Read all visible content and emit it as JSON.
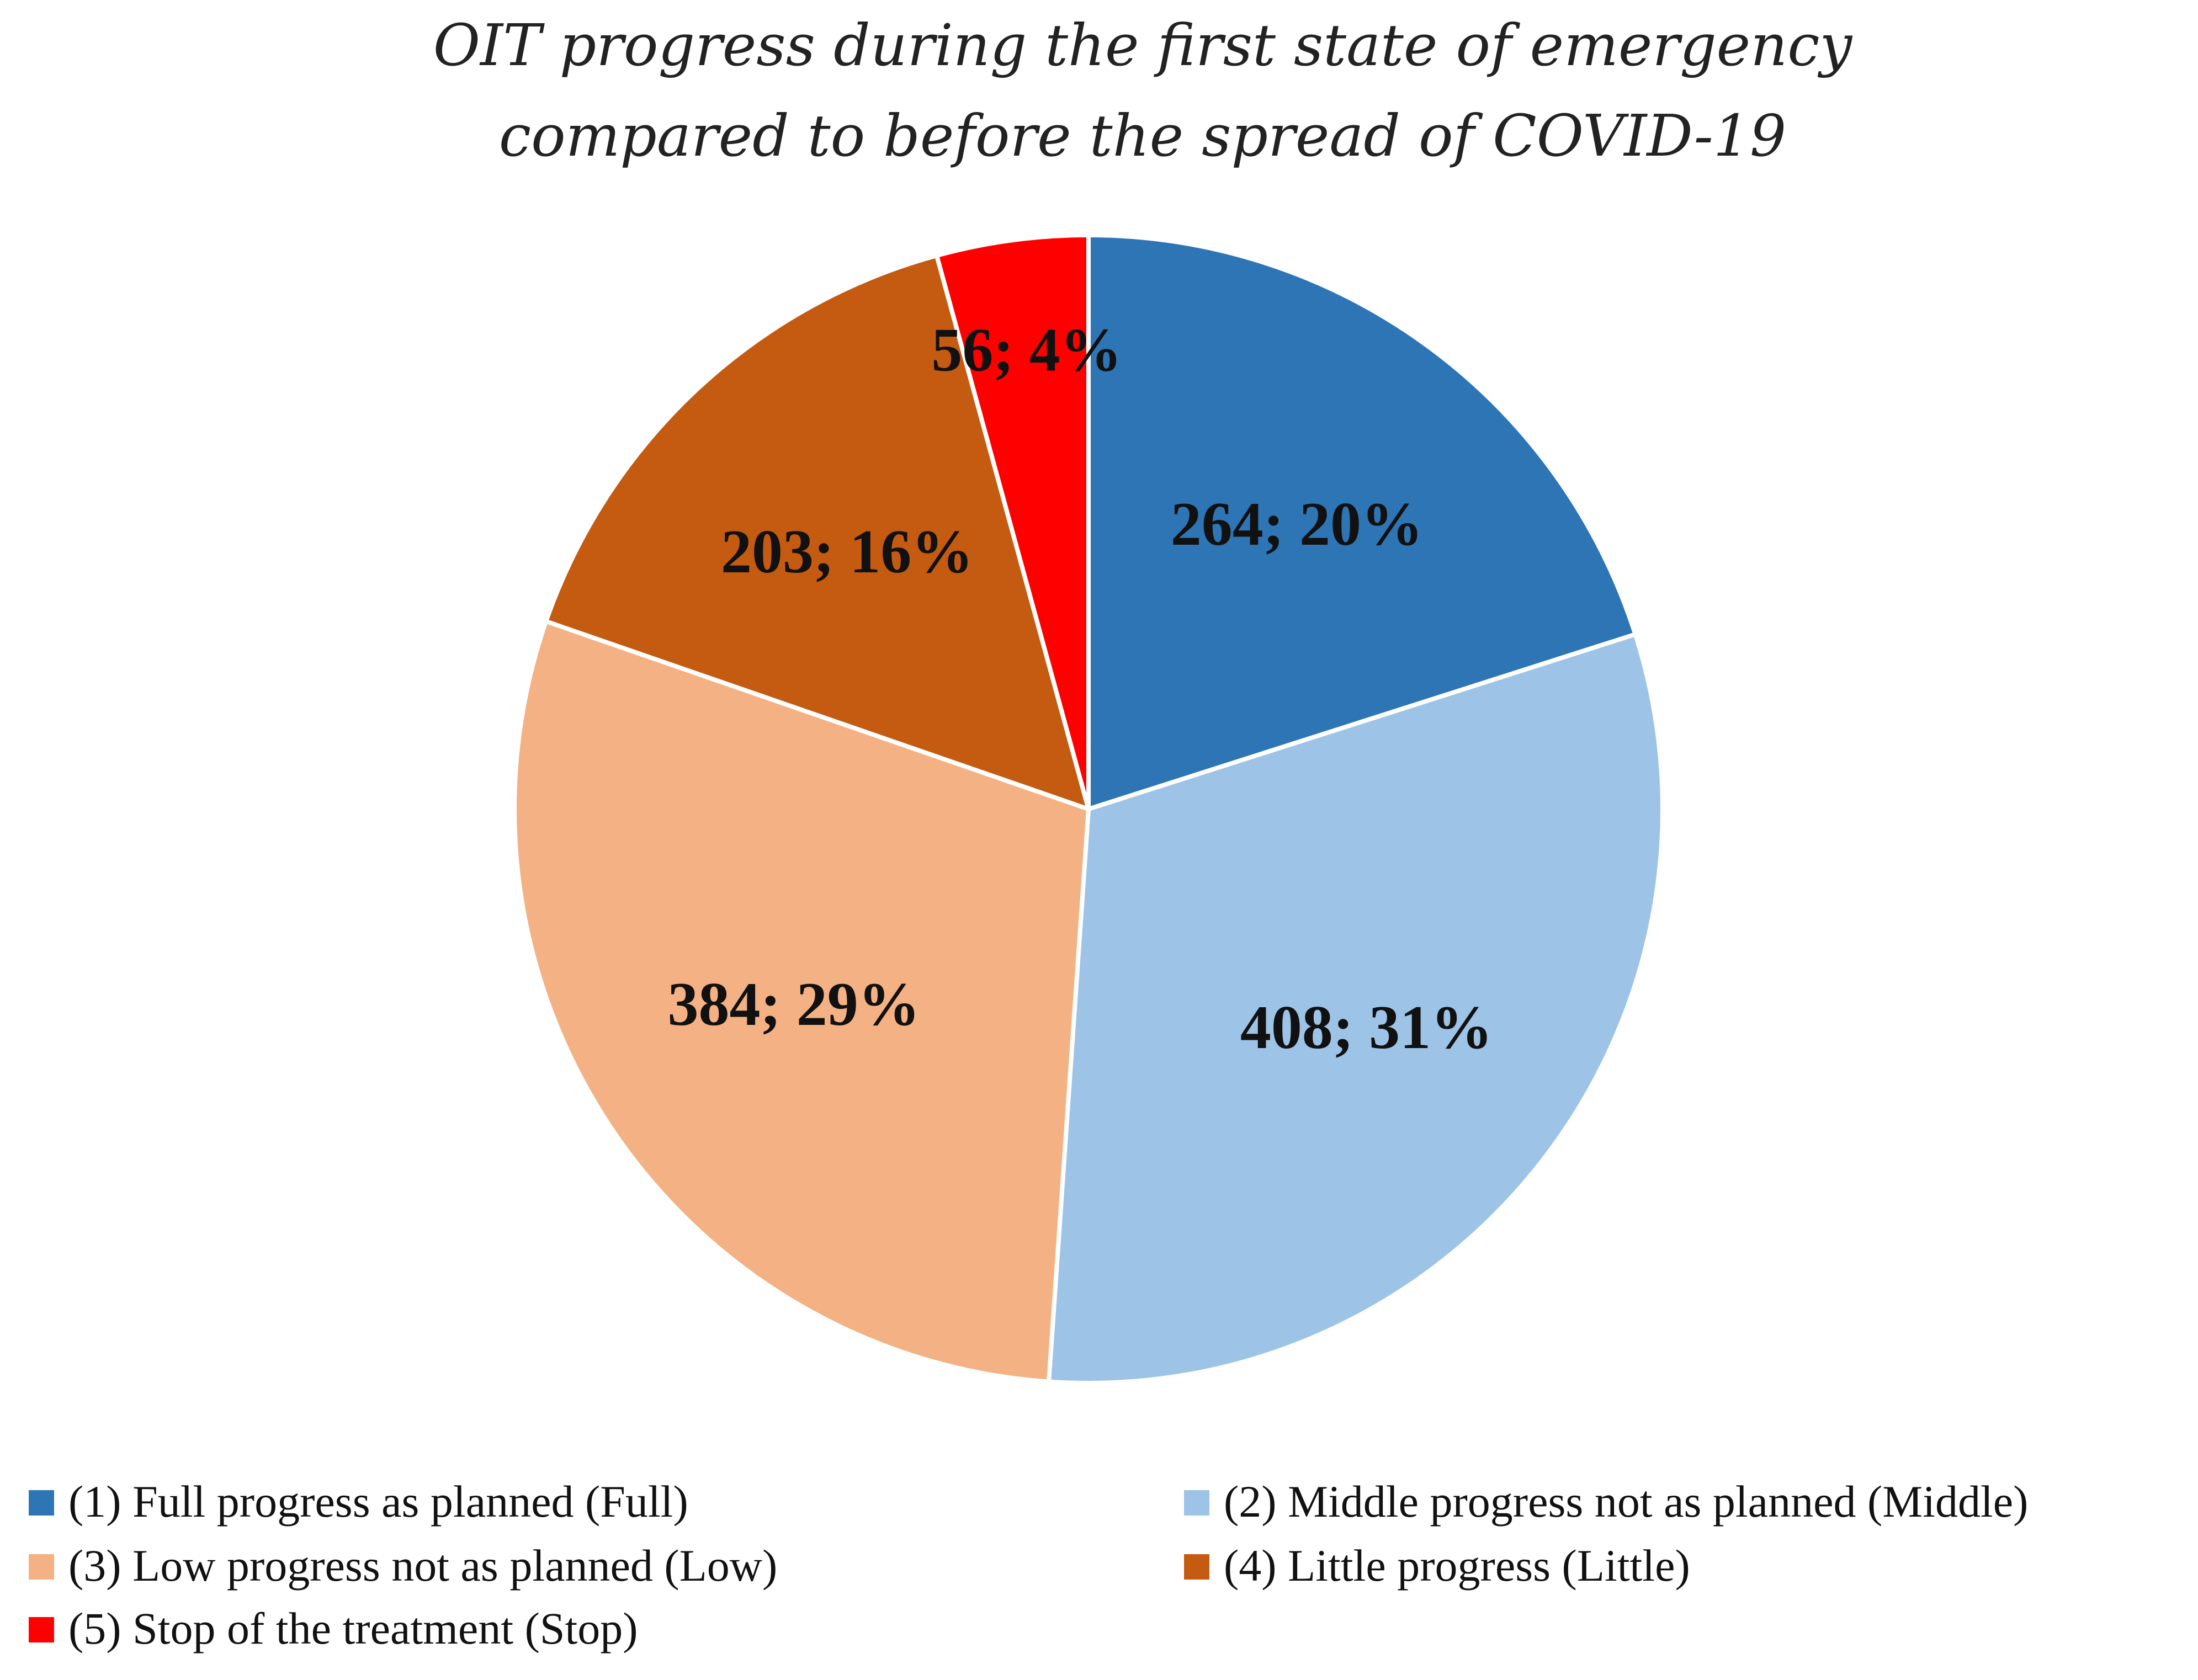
{
  "chart_data": {
    "type": "pie",
    "title": "OIT progress during the first state of emergency compared to before the spread of COVID-19",
    "title_lines": [
      "OIT progress during the first state of emergency",
      "compared to before the spread of COVID-19"
    ],
    "categories": [
      "(1) Full progress as planned (Full)",
      "(2) Middle progress not as planned (Middle)",
      "(3) Low progress not as planned (Low)",
      "(4) Little progress (Little)",
      "(5) Stop of the treatment (Stop)"
    ],
    "values": [
      264,
      408,
      384,
      203,
      56
    ],
    "data_labels": [
      "264; 20%",
      "408; 31%",
      "384; 29%",
      "203; 16%",
      "56; 4%"
    ],
    "colors": [
      "#2e75b6",
      "#9dc3e6",
      "#f4b183",
      "#c55a11",
      "#ff0000"
    ],
    "start_angle": "12 o'clock",
    "direction": "clockwise",
    "legend_position": "bottom"
  }
}
